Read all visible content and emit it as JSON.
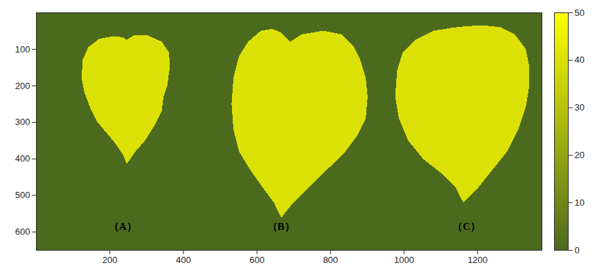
{
  "chart_data": {
    "type": "heatmap",
    "xlim": [
      0,
      1375
    ],
    "ylim": [
      650,
      0
    ],
    "xticks": [
      200,
      400,
      600,
      800,
      1000,
      1200
    ],
    "yticks": [
      100,
      200,
      300,
      400,
      500,
      600
    ],
    "background": 0,
    "regions": [
      {
        "value": 40,
        "outline": [
          [
            245,
            75
          ],
          [
            265,
            62
          ],
          [
            300,
            62
          ],
          [
            340,
            80
          ],
          [
            360,
            110
          ],
          [
            362,
            150
          ],
          [
            355,
            200
          ],
          [
            345,
            230
          ],
          [
            340,
            270
          ],
          [
            320,
            310
          ],
          [
            295,
            350
          ],
          [
            265,
            385
          ],
          [
            245,
            415
          ],
          [
            235,
            390
          ],
          [
            215,
            360
          ],
          [
            190,
            330
          ],
          [
            165,
            300
          ],
          [
            145,
            260
          ],
          [
            130,
            220
          ],
          [
            122,
            180
          ],
          [
            125,
            130
          ],
          [
            140,
            95
          ],
          [
            170,
            72
          ],
          [
            210,
            65
          ],
          [
            235,
            68
          ]
        ]
      },
      {
        "value": 40,
        "outline": [
          [
            690,
            80
          ],
          [
            720,
            60
          ],
          [
            780,
            50
          ],
          [
            830,
            60
          ],
          [
            860,
            90
          ],
          [
            880,
            130
          ],
          [
            895,
            180
          ],
          [
            900,
            230
          ],
          [
            895,
            290
          ],
          [
            870,
            340
          ],
          [
            840,
            380
          ],
          [
            800,
            420
          ],
          [
            760,
            460
          ],
          [
            720,
            500
          ],
          [
            690,
            530
          ],
          [
            665,
            562
          ],
          [
            645,
            520
          ],
          [
            615,
            480
          ],
          [
            580,
            430
          ],
          [
            550,
            380
          ],
          [
            535,
            320
          ],
          [
            530,
            250
          ],
          [
            535,
            180
          ],
          [
            550,
            120
          ],
          [
            575,
            80
          ],
          [
            610,
            50
          ],
          [
            640,
            45
          ],
          [
            665,
            55
          ]
        ]
      },
      {
        "value": 40,
        "outline": [
          [
            1165,
            38
          ],
          [
            1210,
            35
          ],
          [
            1260,
            40
          ],
          [
            1300,
            60
          ],
          [
            1330,
            100
          ],
          [
            1340,
            150
          ],
          [
            1340,
            200
          ],
          [
            1330,
            260
          ],
          [
            1310,
            320
          ],
          [
            1280,
            380
          ],
          [
            1240,
            430
          ],
          [
            1200,
            480
          ],
          [
            1160,
            520
          ],
          [
            1140,
            480
          ],
          [
            1100,
            440
          ],
          [
            1050,
            400
          ],
          [
            1010,
            350
          ],
          [
            985,
            290
          ],
          [
            975,
            230
          ],
          [
            980,
            160
          ],
          [
            995,
            110
          ],
          [
            1030,
            75
          ],
          [
            1080,
            50
          ],
          [
            1130,
            42
          ]
        ]
      }
    ],
    "annotations": [
      {
        "text": "（A）",
        "x": 235,
        "y": 585
      },
      {
        "text": "（B）",
        "x": 665,
        "y": 585
      },
      {
        "text": "（C）",
        "x": 1170,
        "y": 585
      }
    ],
    "colorbar": {
      "range": [
        0,
        50
      ],
      "ticks": [
        0,
        10,
        20,
        30,
        40,
        50
      ]
    }
  }
}
